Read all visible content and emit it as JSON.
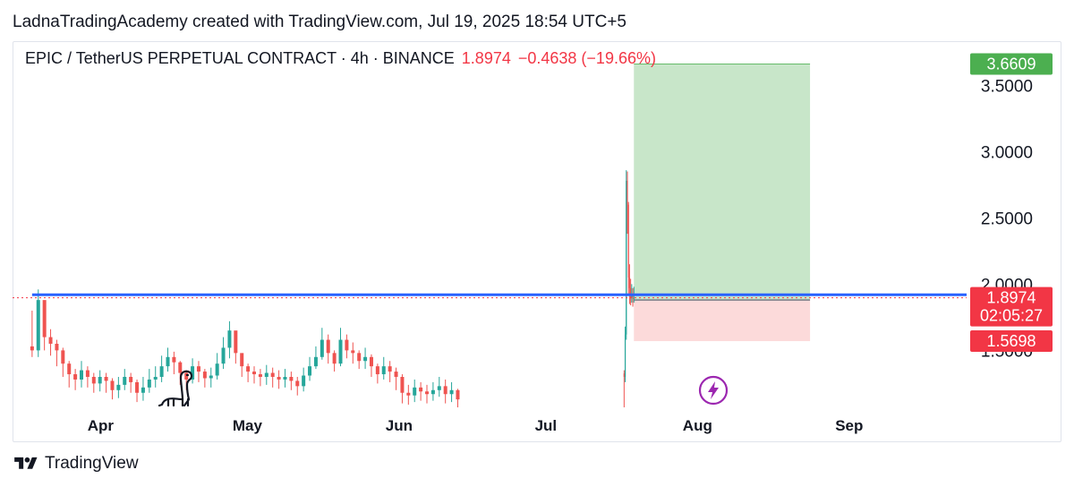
{
  "attribution": "LadnaTradingAcademy created with TradingView.com, Jul 19, 2025 18:54 UTC+5",
  "header": {
    "symbol": "EPIC / TetherUS PERPETUAL CONTRACT · 4h · BINANCE",
    "price": "1.8974",
    "change": "−0.4638 (−19.66%)"
  },
  "footer": {
    "brand": "TradingView"
  },
  "colors": {
    "up": "#26a69a",
    "down": "#ef5350",
    "resistance_line": "#2962ff",
    "target_zone": "#c8e6c9",
    "stop_zone": "#fcdada",
    "target_badge": "#4caf50",
    "price_badge": "#f23645",
    "stop_badge": "#f23645",
    "signal_icon": "#9c27b0"
  },
  "icons": [
    "dinosaur-icon",
    "lightning-icon",
    "tradingview-logo-icon"
  ],
  "chart_data": {
    "type": "candlestick",
    "timeframe": "4h",
    "y_axis": {
      "position": "right",
      "ticks": [
        "3.5000",
        "3.0000",
        "2.5000",
        "2.0000",
        "1.5000"
      ],
      "tick_values": [
        3.5,
        3.0,
        2.5,
        2.0,
        1.5
      ],
      "range": [
        1.05,
        3.82
      ]
    },
    "x_axis": {
      "ticks": [
        "Apr",
        "May",
        "Jun",
        "Jul",
        "Aug",
        "Sep"
      ],
      "tick_dates": [
        "2025-04-01",
        "2025-05-01",
        "2025-06-01",
        "2025-07-01",
        "2025-08-01",
        "2025-09-01"
      ],
      "range": [
        "2025-03-14",
        "2025-09-25"
      ]
    },
    "last_price": {
      "value": 1.8974,
      "label": "1.8974",
      "countdown": "02:05:27"
    },
    "resistance_level": 1.92,
    "position": {
      "start": "2025-07-19",
      "end": "2025-08-24",
      "entry": 1.88,
      "target": 3.6609,
      "target_label": "3.6609",
      "stop": 1.5698,
      "stop_label": "1.5698"
    },
    "series": [
      {
        "segment": 1,
        "start_date": "2025-03-18",
        "end_date": "2025-06-13",
        "closes": [
          1.5,
          1.88,
          1.6,
          1.55,
          1.5,
          1.4,
          1.32,
          1.28,
          1.35,
          1.3,
          1.25,
          1.3,
          1.27,
          1.2,
          1.24,
          1.3,
          1.26,
          1.18,
          1.22,
          1.28,
          1.3,
          1.38,
          1.45,
          1.41,
          1.33,
          1.28,
          1.38,
          1.34,
          1.29,
          1.31,
          1.4,
          1.52,
          1.65,
          1.48,
          1.38,
          1.34,
          1.32,
          1.3,
          1.33,
          1.3,
          1.28,
          1.3,
          1.27,
          1.23,
          1.31,
          1.38,
          1.45,
          1.58,
          1.48,
          1.4,
          1.58,
          1.5,
          1.48,
          1.42,
          1.45,
          1.38,
          1.32,
          1.38,
          1.34,
          1.3,
          1.18,
          1.16,
          1.22,
          1.19,
          1.17,
          1.2,
          1.23,
          1.17,
          1.2,
          1.13
        ],
        "highs": [
          1.8,
          1.96,
          1.86,
          1.66,
          1.58,
          1.52,
          1.42,
          1.36,
          1.42,
          1.38,
          1.33,
          1.35,
          1.33,
          1.29,
          1.3,
          1.36,
          1.33,
          1.28,
          1.3,
          1.36,
          1.38,
          1.46,
          1.52,
          1.49,
          1.42,
          1.35,
          1.44,
          1.42,
          1.36,
          1.37,
          1.48,
          1.6,
          1.72,
          1.63,
          1.46,
          1.4,
          1.38,
          1.36,
          1.39,
          1.37,
          1.35,
          1.36,
          1.34,
          1.3,
          1.37,
          1.45,
          1.53,
          1.67,
          1.62,
          1.5,
          1.67,
          1.62,
          1.56,
          1.5,
          1.52,
          1.47,
          1.4,
          1.45,
          1.42,
          1.37,
          1.32,
          1.24,
          1.28,
          1.26,
          1.24,
          1.26,
          1.3,
          1.28,
          1.26,
          1.21
        ],
        "lows": [
          1.45,
          1.45,
          1.5,
          1.46,
          1.38,
          1.3,
          1.22,
          1.2,
          1.22,
          1.22,
          1.18,
          1.19,
          1.18,
          1.13,
          1.14,
          1.2,
          1.18,
          1.11,
          1.12,
          1.18,
          1.22,
          1.26,
          1.34,
          1.32,
          1.24,
          1.2,
          1.25,
          1.26,
          1.22,
          1.22,
          1.28,
          1.36,
          1.44,
          1.4,
          1.3,
          1.26,
          1.25,
          1.23,
          1.24,
          1.22,
          1.21,
          1.22,
          1.2,
          1.16,
          1.19,
          1.27,
          1.36,
          1.43,
          1.4,
          1.34,
          1.38,
          1.44,
          1.4,
          1.36,
          1.36,
          1.3,
          1.25,
          1.28,
          1.26,
          1.2,
          1.1,
          1.09,
          1.11,
          1.12,
          1.1,
          1.12,
          1.15,
          1.1,
          1.11,
          1.07
        ]
      },
      {
        "segment": 2,
        "start_date": "2025-07-17",
        "end_date": "2025-07-19",
        "closes": [
          1.3,
          1.62,
          2.78,
          2.6,
          2.05,
          1.97,
          1.9,
          1.92,
          1.89,
          1.8974
        ],
        "highs": [
          1.35,
          1.68,
          2.86,
          2.85,
          2.62,
          2.15,
          2.04,
          2.0,
          1.97,
          1.98
        ],
        "lows": [
          1.07,
          1.26,
          1.58,
          2.38,
          1.92,
          1.85,
          1.84,
          1.86,
          1.83,
          1.86
        ]
      }
    ]
  }
}
